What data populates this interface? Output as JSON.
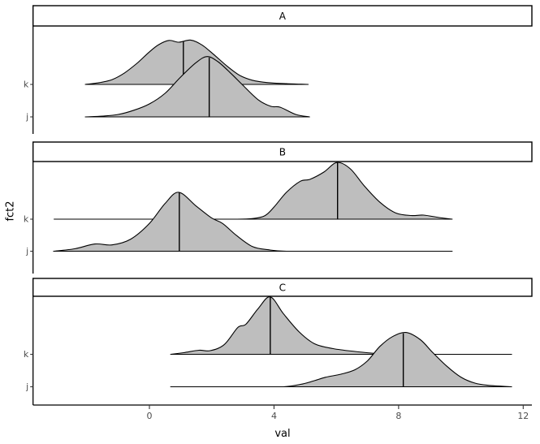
{
  "chart_data": {
    "type": "ridgeline",
    "title": "",
    "xlabel": "val",
    "ylabel": "fct2",
    "x_ticks": [
      0,
      4,
      8,
      12
    ],
    "x_range": [
      -3.75,
      12.3
    ],
    "y_categories": [
      "k",
      "j"
    ],
    "legend": "none",
    "grid": "off",
    "colors": {
      "ridge_fill": "#bebebe",
      "ridge_line": "#000000",
      "median_line": "#000000",
      "axis_line": "#000000",
      "strip_border": "#000000",
      "strip_fill": "#ffffff",
      "axis_text": "#4d4d4d",
      "tick_mark": "#333333",
      "title_text": "#000000"
    },
    "facets": [
      {
        "label": "A",
        "ridges": [
          {
            "group": "k",
            "median": 1.09,
            "points": [
              [
                -2.06,
                0
              ],
              [
                -1.6,
                0.03
              ],
              [
                -1.2,
                0.08
              ],
              [
                -0.8,
                0.19
              ],
              [
                -0.4,
                0.35
              ],
              [
                0,
                0.54
              ],
              [
                0.3,
                0.66
              ],
              [
                0.63,
                0.73
              ],
              [
                0.95,
                0.7
              ],
              [
                1.33,
                0.735
              ],
              [
                1.7,
                0.65
              ],
              [
                2.1,
                0.48
              ],
              [
                2.5,
                0.3
              ],
              [
                2.9,
                0.15
              ],
              [
                3.3,
                0.07
              ],
              [
                3.8,
                0.03
              ],
              [
                4.4,
                0.013
              ],
              [
                5.1,
                0
              ]
            ]
          },
          {
            "group": "j",
            "median": 1.92,
            "points": [
              [
                -2.06,
                0
              ],
              [
                -1.5,
                0.013
              ],
              [
                -1.0,
                0.04
              ],
              [
                -0.5,
                0.11
              ],
              [
                0,
                0.215
              ],
              [
                0.5,
                0.39
              ],
              [
                1.0,
                0.66
              ],
              [
                1.5,
                0.9
              ],
              [
                1.85,
                1.0
              ],
              [
                2.2,
                0.915
              ],
              [
                2.6,
                0.73
              ],
              [
                3.0,
                0.525
              ],
              [
                3.5,
                0.28
              ],
              [
                3.9,
                0.175
              ],
              [
                4.2,
                0.16
              ],
              [
                4.7,
                0.04
              ],
              [
                5.14,
                0
              ]
            ]
          }
        ]
      },
      {
        "label": "B",
        "ridges": [
          {
            "group": "k",
            "median": 6.04,
            "points": [
              [
                -3.06,
                0
              ],
              [
                -1.5,
                0
              ],
              [
                0,
                0
              ],
              [
                1.5,
                0
              ],
              [
                2.8,
                0
              ],
              [
                3.3,
                0.01
              ],
              [
                3.7,
                0.055
              ],
              [
                4.0,
                0.2
              ],
              [
                4.4,
                0.445
              ],
              [
                4.85,
                0.63
              ],
              [
                5.15,
                0.66
              ],
              [
                5.6,
                0.78
              ],
              [
                6.02,
                0.94
              ],
              [
                6.45,
                0.835
              ],
              [
                6.9,
                0.55
              ],
              [
                7.4,
                0.28
              ],
              [
                7.9,
                0.105
              ],
              [
                8.4,
                0.06
              ],
              [
                8.8,
                0.067
              ],
              [
                9.3,
                0.027
              ],
              [
                9.72,
                0
              ]
            ]
          },
          {
            "group": "j",
            "median": 0.96,
            "points": [
              [
                -3.08,
                0
              ],
              [
                -2.4,
                0.04
              ],
              [
                -1.75,
                0.12
              ],
              [
                -1.2,
                0.105
              ],
              [
                -0.6,
                0.2
              ],
              [
                0,
                0.46
              ],
              [
                0.5,
                0.79
              ],
              [
                0.94,
                0.977
              ],
              [
                1.5,
                0.75
              ],
              [
                2.0,
                0.55
              ],
              [
                2.35,
                0.46
              ],
              [
                2.8,
                0.26
              ],
              [
                3.3,
                0.08
              ],
              [
                3.8,
                0.025
              ],
              [
                4.4,
                0
              ],
              [
                6,
                0
              ],
              [
                8,
                0
              ],
              [
                9.72,
                0
              ]
            ]
          }
        ]
      },
      {
        "label": "C",
        "ridges": [
          {
            "group": "k",
            "median": 3.88,
            "points": [
              [
                0.68,
                0
              ],
              [
                1.1,
                0.027
              ],
              [
                1.59,
                0.067
              ],
              [
                1.95,
                0.06
              ],
              [
                2.4,
                0.16
              ],
              [
                2.84,
                0.445
              ],
              [
                3.1,
                0.5
              ],
              [
                3.5,
                0.765
              ],
              [
                3.88,
                0.952
              ],
              [
                4.3,
                0.675
              ],
              [
                4.8,
                0.375
              ],
              [
                5.3,
                0.175
              ],
              [
                5.9,
                0.094
              ],
              [
                6.6,
                0.047
              ],
              [
                7.3,
                0.013
              ],
              [
                8.0,
                0
              ],
              [
                9.5,
                0
              ],
              [
                11.63,
                0
              ]
            ]
          },
          {
            "group": "j",
            "median": 8.15,
            "points": [
              [
                0.68,
                0
              ],
              [
                2.0,
                0
              ],
              [
                3.3,
                0
              ],
              [
                4.3,
                0
              ],
              [
                4.85,
                0.04
              ],
              [
                5.25,
                0.094
              ],
              [
                5.65,
                0.157
              ],
              [
                6.15,
                0.209
              ],
              [
                6.6,
                0.283
              ],
              [
                7.0,
                0.43
              ],
              [
                7.4,
                0.67
              ],
              [
                7.8,
                0.83
              ],
              [
                8.24,
                0.9
              ],
              [
                8.7,
                0.78
              ],
              [
                9.1,
                0.565
              ],
              [
                9.55,
                0.34
              ],
              [
                10.0,
                0.16
              ],
              [
                10.45,
                0.06
              ],
              [
                10.9,
                0.023
              ],
              [
                11.63,
                0
              ]
            ]
          }
        ]
      }
    ]
  }
}
